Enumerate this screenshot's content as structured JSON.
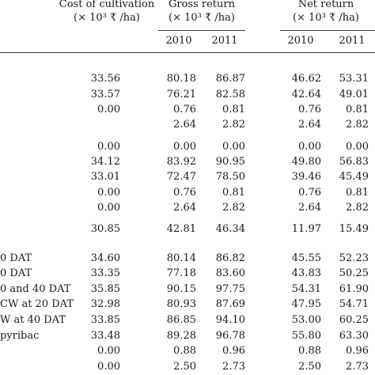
{
  "header": {
    "cost": {
      "title": "Cost of cultivation",
      "unit": "(× 10³ ₹ /ha)"
    },
    "gross": {
      "title": "Gross return",
      "unit": "(× 10³ ₹ /ha)"
    },
    "net": {
      "title": "Net return",
      "unit": "(× 10³ ₹ /ha)"
    },
    "years": [
      "2010",
      "2011",
      "2010",
      "2011"
    ]
  },
  "rows": [
    {
      "label": "",
      "cost": "33.56",
      "g2010": "80.18",
      "g2011": "86.87",
      "n2010": "46.62",
      "n2011": "53.31"
    },
    {
      "label": "",
      "cost": "33.57",
      "g2010": "76.21",
      "g2011": "82.58",
      "n2010": "42.64",
      "n2011": "49.01"
    },
    {
      "label": "",
      "cost": "0.00",
      "g2010": "0.76",
      "g2011": "0.81",
      "n2010": "0.76",
      "n2011": "0.81"
    },
    {
      "label": "",
      "cost": "",
      "g2010": "2.64",
      "g2011": "2.82",
      "n2010": "2.64",
      "n2011": "2.82"
    },
    {
      "label": "",
      "cost": "0.00",
      "g2010": "0.00",
      "g2011": "0.00",
      "n2010": "0.00",
      "n2011": "0.00"
    },
    {
      "label": "",
      "cost": "34.12",
      "g2010": "83.92",
      "g2011": "90.95",
      "n2010": "49.80",
      "n2011": "56.83"
    },
    {
      "label": "",
      "cost": "33.01",
      "g2010": "72.47",
      "g2011": "78.50",
      "n2010": "39.46",
      "n2011": "45.49"
    },
    {
      "label": "",
      "cost": "0.00",
      "g2010": "0.76",
      "g2011": "0.81",
      "n2010": "0.76",
      "n2011": "0.81"
    },
    {
      "label": "",
      "cost": "0.00",
      "g2010": "2.64",
      "g2011": "2.82",
      "n2010": "2.64",
      "n2011": "2.82"
    },
    {
      "label": "",
      "cost": "30.85",
      "g2010": "42.81",
      "g2011": "46.34",
      "n2010": "11.97",
      "n2011": "15.49"
    },
    {
      "label": "0 DAT",
      "cost": "34.60",
      "g2010": "80.14",
      "g2011": "86.82",
      "n2010": "45.55",
      "n2011": "52.23"
    },
    {
      "label": "0 DAT",
      "cost": "33.35",
      "g2010": "77.18",
      "g2011": "83.60",
      "n2010": "43.83",
      "n2011": "50.25"
    },
    {
      "label": "0 and 40 DAT",
      "cost": "35.85",
      "g2010": "90.15",
      "g2011": "97.75",
      "n2010": "54.31",
      "n2011": "61.90"
    },
    {
      "label": "CW at 20 DAT",
      "cost": "32.98",
      "g2010": "80.93",
      "g2011": "87.69",
      "n2010": "47.95",
      "n2011": "54.71"
    },
    {
      "label": "W at 40 DAT",
      "cost": "33.85",
      "g2010": "86.85",
      "g2011": "94.10",
      "n2010": "53.00",
      "n2011": "60.25"
    },
    {
      "label": "pyribac",
      "cost": "33.48",
      "g2010": "89.28",
      "g2011": "96.78",
      "n2010": "55.80",
      "n2011": "63.30"
    },
    {
      "label": "",
      "cost": "0.00",
      "g2010": "0.88",
      "g2011": "0.96",
      "n2010": "0.88",
      "n2011": "0.96"
    },
    {
      "label": "",
      "cost": "0.00",
      "g2010": "2.50",
      "g2011": "2.73",
      "n2010": "2.50",
      "n2011": "2.73"
    }
  ]
}
